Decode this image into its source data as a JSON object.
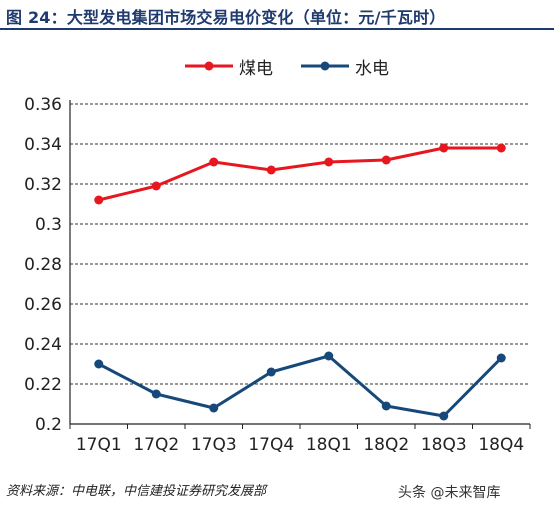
{
  "header": {
    "title": "图 24：大型发电集团市场交易电价变化（单位：元/千瓦时）"
  },
  "colors": {
    "title": "#1f3a6e",
    "coal": "#e8161f",
    "hydro": "#16497a",
    "grid": "#333333"
  },
  "chart_data": {
    "type": "line",
    "categories": [
      "17Q1",
      "17Q2",
      "17Q3",
      "17Q4",
      "18Q1",
      "18Q2",
      "18Q3",
      "18Q4"
    ],
    "series": [
      {
        "name": "煤电",
        "values": [
          0.312,
          0.319,
          0.331,
          0.327,
          0.331,
          0.332,
          0.338,
          0.338
        ]
      },
      {
        "name": "水电",
        "values": [
          0.23,
          0.215,
          0.208,
          0.226,
          0.234,
          0.209,
          0.204,
          0.233
        ]
      }
    ],
    "yticks": [
      "0.2",
      "0.22",
      "0.24",
      "0.26",
      "0.28",
      "0.3",
      "0.32",
      "0.34",
      "0.36"
    ],
    "ylim": [
      0.2,
      0.36
    ],
    "grid": true,
    "legend_position": "top-center"
  },
  "footer": {
    "source": "资料来源：中电联，中信建投证券研究发展部",
    "watermark": "头条 @未来智库"
  }
}
